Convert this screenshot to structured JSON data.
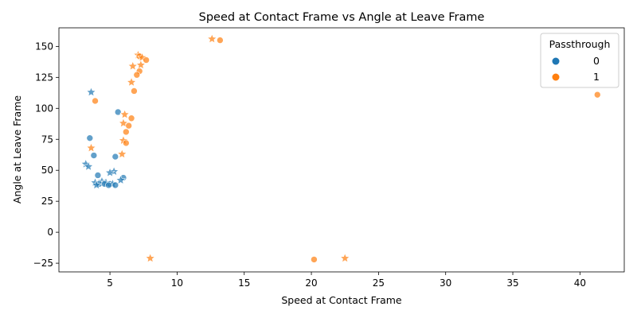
{
  "chart_data": {
    "type": "scatter",
    "title": "Speed at Contact Frame vs Angle at Leave Frame",
    "xlabel": "Speed at Contact Frame",
    "ylabel": "Angle at Leave Frame",
    "xlim": [
      1.2,
      43.3
    ],
    "ylim": [
      -32,
      165
    ],
    "xticks": [
      "5",
      "10",
      "15",
      "20",
      "25",
      "30",
      "35",
      "40"
    ],
    "yticks": [
      "−25",
      "0",
      "25",
      "50",
      "75",
      "100",
      "125",
      "150"
    ],
    "grid": false,
    "legend": {
      "title": "Passthrough",
      "placement": "top-right"
    },
    "series": [
      {
        "name": "0",
        "color": "#1f77b4",
        "points": [
          {
            "x": 3.6,
            "y": 113,
            "m": "star"
          },
          {
            "x": 5.6,
            "y": 97,
            "m": "circle"
          },
          {
            "x": 3.5,
            "y": 76,
            "m": "circle"
          },
          {
            "x": 3.8,
            "y": 62,
            "m": "circle"
          },
          {
            "x": 5.4,
            "y": 61,
            "m": "circle"
          },
          {
            "x": 3.2,
            "y": 55,
            "m": "star"
          },
          {
            "x": 3.4,
            "y": 53,
            "m": "star"
          },
          {
            "x": 5.3,
            "y": 49,
            "m": "star"
          },
          {
            "x": 5.0,
            "y": 48,
            "m": "star"
          },
          {
            "x": 4.1,
            "y": 46,
            "m": "circle"
          },
          {
            "x": 6.0,
            "y": 44,
            "m": "circle"
          },
          {
            "x": 5.8,
            "y": 42,
            "m": "star"
          },
          {
            "x": 4.4,
            "y": 41,
            "m": "star"
          },
          {
            "x": 4.7,
            "y": 40,
            "m": "star"
          },
          {
            "x": 3.9,
            "y": 40,
            "m": "star"
          },
          {
            "x": 4.2,
            "y": 39,
            "m": "circle"
          },
          {
            "x": 4.6,
            "y": 39,
            "m": "circle"
          },
          {
            "x": 5.0,
            "y": 39,
            "m": "circle"
          },
          {
            "x": 5.2,
            "y": 39,
            "m": "star"
          },
          {
            "x": 4.0,
            "y": 38,
            "m": "star"
          },
          {
            "x": 4.9,
            "y": 38,
            "m": "circle"
          },
          {
            "x": 5.4,
            "y": 38,
            "m": "circle"
          }
        ]
      },
      {
        "name": "1",
        "color": "#ff7f0e",
        "points": [
          {
            "x": 12.6,
            "y": 156,
            "m": "star"
          },
          {
            "x": 13.2,
            "y": 155,
            "m": "circle"
          },
          {
            "x": 7.1,
            "y": 143,
            "m": "star"
          },
          {
            "x": 7.2,
            "y": 142,
            "m": "circle"
          },
          {
            "x": 7.4,
            "y": 141,
            "m": "star"
          },
          {
            "x": 7.7,
            "y": 139,
            "m": "circle"
          },
          {
            "x": 7.3,
            "y": 135,
            "m": "star"
          },
          {
            "x": 6.7,
            "y": 134,
            "m": "star"
          },
          {
            "x": 7.2,
            "y": 130,
            "m": "circle"
          },
          {
            "x": 7.0,
            "y": 127,
            "m": "circle"
          },
          {
            "x": 6.6,
            "y": 121,
            "m": "star"
          },
          {
            "x": 6.8,
            "y": 114,
            "m": "circle"
          },
          {
            "x": 41.3,
            "y": 111,
            "m": "circle"
          },
          {
            "x": 3.9,
            "y": 106,
            "m": "circle"
          },
          {
            "x": 6.1,
            "y": 95,
            "m": "star"
          },
          {
            "x": 6.6,
            "y": 92,
            "m": "circle"
          },
          {
            "x": 6.0,
            "y": 88,
            "m": "star"
          },
          {
            "x": 6.4,
            "y": 86,
            "m": "circle"
          },
          {
            "x": 6.2,
            "y": 81,
            "m": "circle"
          },
          {
            "x": 6.0,
            "y": 74,
            "m": "star"
          },
          {
            "x": 6.2,
            "y": 72,
            "m": "circle"
          },
          {
            "x": 3.6,
            "y": 68,
            "m": "star"
          },
          {
            "x": 5.9,
            "y": 63,
            "m": "star"
          },
          {
            "x": 8.0,
            "y": -21,
            "m": "star"
          },
          {
            "x": 20.2,
            "y": -22,
            "m": "circle"
          },
          {
            "x": 22.5,
            "y": -21,
            "m": "star"
          }
        ]
      }
    ]
  }
}
